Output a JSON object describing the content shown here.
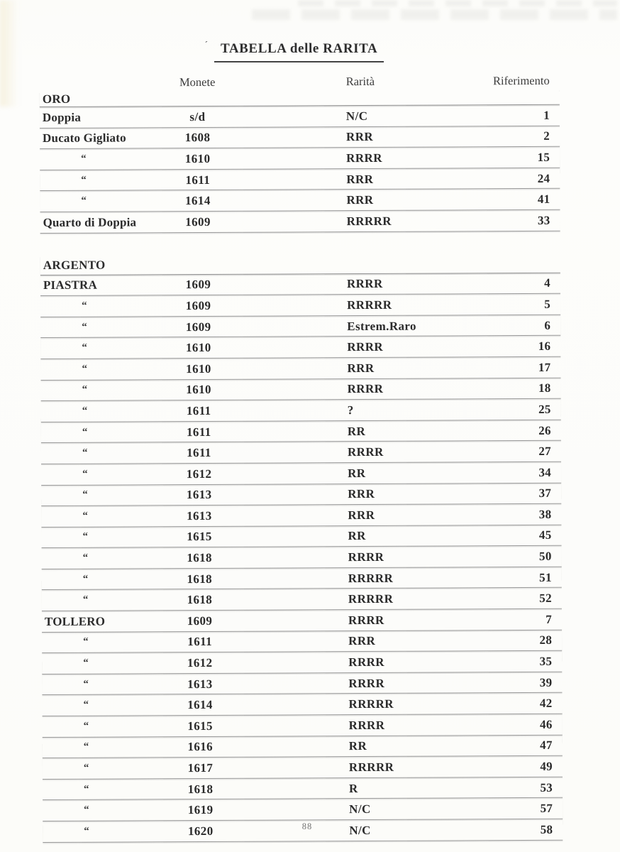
{
  "page": {
    "title": "TABELLA delle RARITA",
    "title_accent": "´",
    "page_number": "88"
  },
  "table": {
    "headers": {
      "monete": "Monete",
      "rarita": "Rarità",
      "riferimento": "Riferimento"
    },
    "ditto": "“",
    "sections": [
      {
        "label": "ORO",
        "rows": [
          {
            "name": "Doppia",
            "monete": "s/d",
            "rarita": "N/C",
            "riferimento": "1"
          },
          {
            "name": "Ducato Gigliato",
            "monete": "1608",
            "rarita": "RRR",
            "riferimento": "2"
          },
          {
            "name": "“",
            "monete": "1610",
            "rarita": "RRRR",
            "riferimento": "15"
          },
          {
            "name": "“",
            "monete": "1611",
            "rarita": "RRR",
            "riferimento": "24"
          },
          {
            "name": "“",
            "monete": "1614",
            "rarita": "RRR",
            "riferimento": "41"
          },
          {
            "name": "Quarto di Doppia",
            "monete": "1609",
            "rarita": "RRRRR",
            "riferimento": "33"
          }
        ]
      },
      {
        "label": "ARGENTO",
        "rows": [
          {
            "name": "PIASTRA",
            "monete": "1609",
            "rarita": "RRRR",
            "riferimento": "4"
          },
          {
            "name": "“",
            "monete": "1609",
            "rarita": "RRRRR",
            "riferimento": "5"
          },
          {
            "name": "“",
            "monete": "1609",
            "rarita": "Estrem.Raro",
            "riferimento": "6"
          },
          {
            "name": "“",
            "monete": "1610",
            "rarita": "RRRR",
            "riferimento": "16"
          },
          {
            "name": "“",
            "monete": "1610",
            "rarita": "RRR",
            "riferimento": "17"
          },
          {
            "name": "“",
            "monete": "1610",
            "rarita": "RRRR",
            "riferimento": "18"
          },
          {
            "name": "“",
            "monete": "1611",
            "rarita": "?",
            "riferimento": "25"
          },
          {
            "name": "“",
            "monete": "1611",
            "rarita": "RR",
            "riferimento": "26"
          },
          {
            "name": "“",
            "monete": "1611",
            "rarita": "RRRR",
            "riferimento": "27"
          },
          {
            "name": "“",
            "monete": "1612",
            "rarita": "RR",
            "riferimento": "34"
          },
          {
            "name": "“",
            "monete": "1613",
            "rarita": "RRR",
            "riferimento": "37"
          },
          {
            "name": "“",
            "monete": "1613",
            "rarita": "RRR",
            "riferimento": "38"
          },
          {
            "name": "“",
            "monete": "1615",
            "rarita": "RR",
            "riferimento": "45"
          },
          {
            "name": "“",
            "monete": "1618",
            "rarita": "RRRR",
            "riferimento": "50"
          },
          {
            "name": "“",
            "monete": "1618",
            "rarita": "RRRRR",
            "riferimento": "51"
          },
          {
            "name": "“",
            "monete": "1618",
            "rarita": "RRRRR",
            "riferimento": "52"
          },
          {
            "name": "TOLLERO",
            "monete": "1609",
            "rarita": "RRRR",
            "riferimento": "7"
          },
          {
            "name": "“",
            "monete": "1611",
            "rarita": "RRR",
            "riferimento": "28"
          },
          {
            "name": "“",
            "monete": "1612",
            "rarita": "RRRR",
            "riferimento": "35"
          },
          {
            "name": "“",
            "monete": "1613",
            "rarita": "RRRR",
            "riferimento": "39"
          },
          {
            "name": "“",
            "monete": "1614",
            "rarita": "RRRRR",
            "riferimento": "42"
          },
          {
            "name": "“",
            "monete": "1615",
            "rarita": "RRRR",
            "riferimento": "46"
          },
          {
            "name": "“",
            "monete": "1616",
            "rarita": "RR",
            "riferimento": "47"
          },
          {
            "name": "“",
            "monete": "1617",
            "rarita": "RRRRR",
            "riferimento": "49"
          },
          {
            "name": "“",
            "monete": "1618",
            "rarita": "R",
            "riferimento": "53"
          },
          {
            "name": "“",
            "monete": "1619",
            "rarita": "N/C",
            "riferimento": "57"
          },
          {
            "name": "“",
            "monete": "1620",
            "rarita": "N/C",
            "riferimento": "58"
          }
        ]
      }
    ]
  }
}
